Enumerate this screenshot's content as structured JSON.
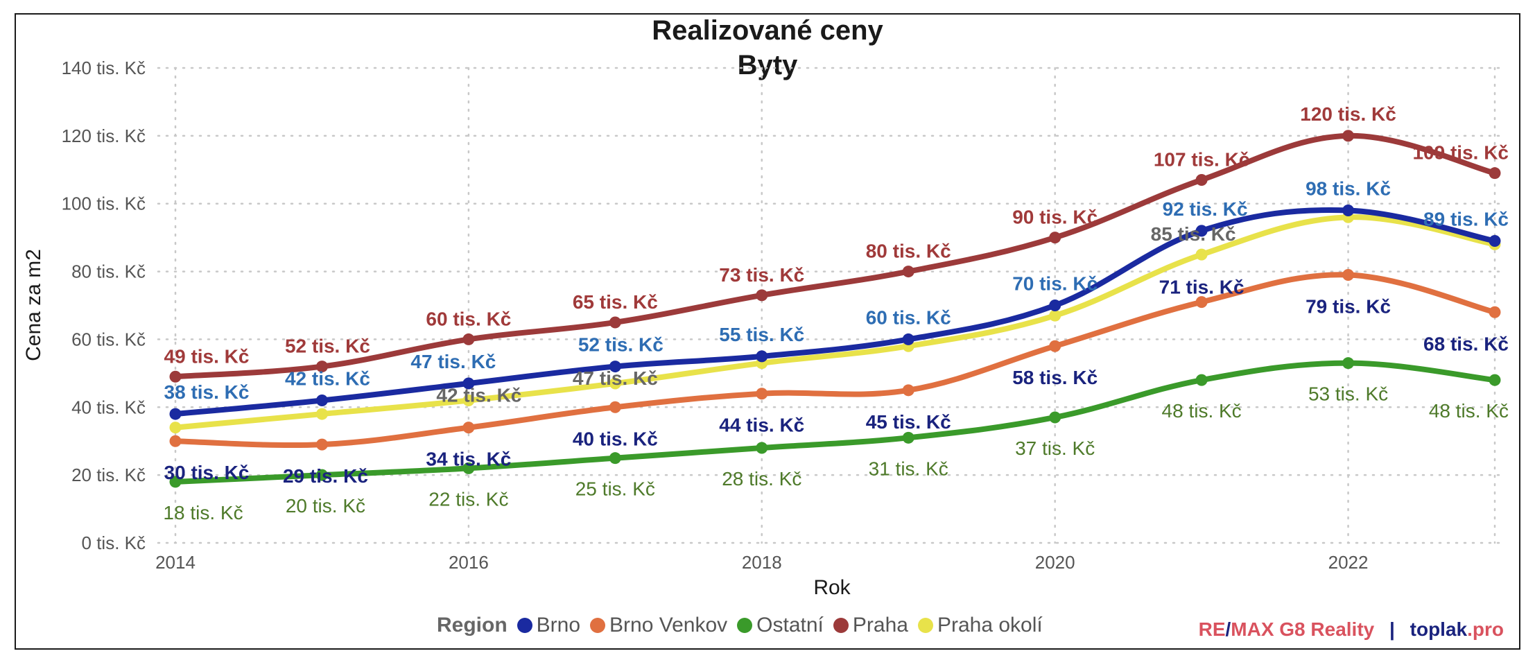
{
  "chart_data": {
    "type": "line",
    "title": "Realizované ceny",
    "subtitle": "Byty",
    "xlabel": "Rok",
    "ylabel": "Cena za m2",
    "x": [
      2014,
      2015,
      2016,
      2017,
      2018,
      2019,
      2020,
      2021,
      2022,
      2023
    ],
    "x_ticks": [
      2014,
      2016,
      2018,
      2020,
      2022
    ],
    "y_ticks": [
      0,
      20,
      40,
      60,
      80,
      100,
      120,
      140
    ],
    "y_tick_suffix": " tis. Kč",
    "ylim": [
      0,
      140
    ],
    "xlim": [
      2014,
      2023
    ],
    "grid": true,
    "legend_title": "Region",
    "legend_position": "bottom",
    "series": [
      {
        "name": "Brno",
        "color": "#1a2aa0",
        "values": [
          38,
          42,
          47,
          52,
          55,
          60,
          70,
          92,
          98,
          89
        ],
        "labels": [
          "38 tis. Kč",
          "42 tis. Kč",
          "47 tis. Kč",
          "52 tis. Kč",
          "55 tis. Kč",
          "60 tis. Kč",
          "70 tis. Kč",
          "92 tis. Kč",
          "98 tis. Kč",
          "89 tis. Kč"
        ],
        "label_color": "#2e6db3",
        "label_bold": true
      },
      {
        "name": "Brno Venkov",
        "color": "#e07040",
        "values": [
          30,
          29,
          34,
          40,
          44,
          45,
          58,
          71,
          79,
          68
        ],
        "labels": [
          "30 tis. Kč",
          "29 tis. Kč",
          "34 tis. Kč",
          "40 tis. Kč",
          "44 tis. Kč",
          "45 tis. Kč",
          "58 tis. Kč",
          "71 tis. Kč",
          "79 tis. Kč",
          "68 tis. Kč"
        ],
        "label_color": "#1a237e",
        "label_bold": true
      },
      {
        "name": "Ostatní",
        "color": "#3a9a2a",
        "values": [
          18,
          20,
          22,
          25,
          28,
          31,
          37,
          48,
          53,
          48
        ],
        "labels": [
          "18 tis. Kč",
          "20 tis. Kč",
          "22 tis. Kč",
          "25 tis. Kč",
          "28 tis. Kč",
          "31 tis. Kč",
          "37 tis. Kč",
          "48 tis. Kč",
          "53 tis. Kč",
          "48 tis. Kč"
        ],
        "label_color": "#4e7a2a",
        "label_bold": false
      },
      {
        "name": "Praha",
        "color": "#9c3a3a",
        "values": [
          49,
          52,
          60,
          65,
          73,
          80,
          90,
          107,
          120,
          109
        ],
        "labels": [
          "49 tis. Kč",
          "52 tis. Kč",
          "60 tis. Kč",
          "65 tis. Kč",
          "73 tis. Kč",
          "80 tis. Kč",
          "90 tis. Kč",
          "107 tis. Kč",
          "120 tis. Kč",
          "109 tis. Kč"
        ],
        "label_color": "#a03a3a",
        "label_bold": true
      },
      {
        "name": "Praha okolí",
        "color": "#e8e24a",
        "values": [
          34,
          38,
          42,
          47,
          53,
          58,
          67,
          85,
          96,
          88
        ],
        "labels": [
          "",
          "",
          "42 tis. Kč",
          "47 tis. Kč",
          "",
          "",
          "",
          "85 tis. Kč",
          "",
          ""
        ],
        "label_color": "#666666",
        "label_bold": true
      }
    ]
  },
  "credit": {
    "remax": "RE",
    "slash": "/",
    "remax2": "MAX G8 Reality",
    "divider": "|",
    "toplak": "toplak",
    "pro": ".pro"
  }
}
